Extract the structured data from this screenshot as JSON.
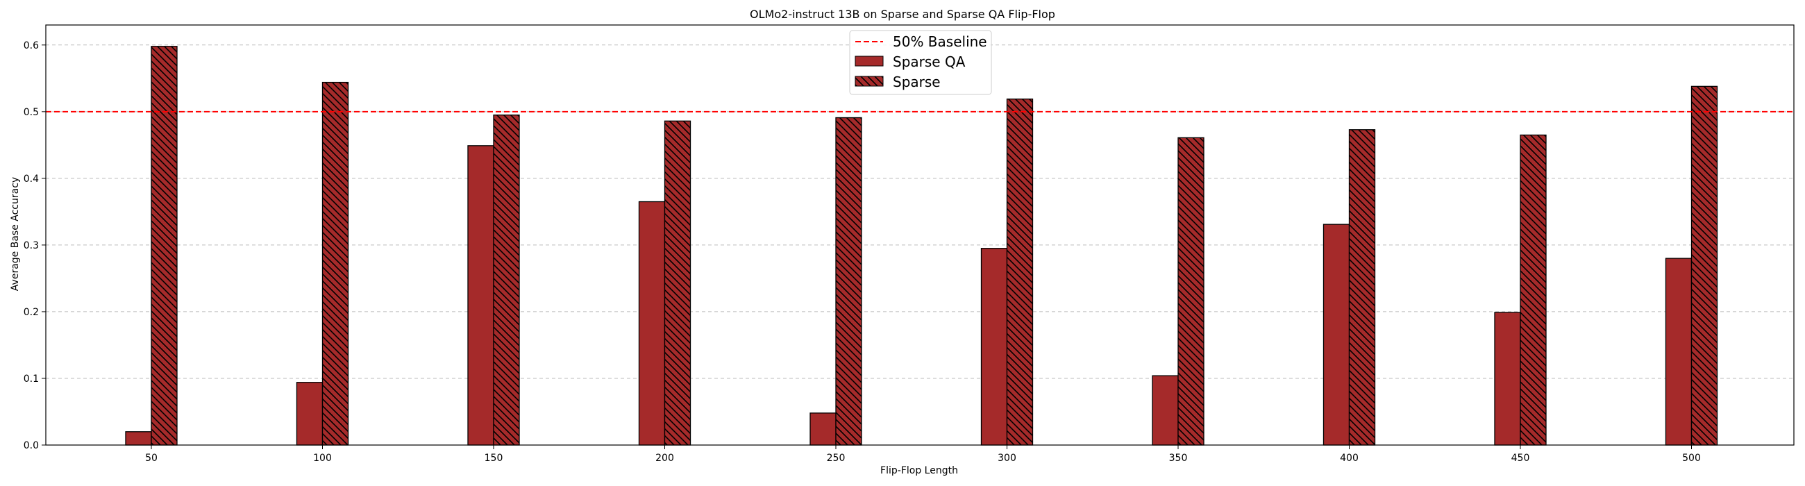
{
  "chart_data": {
    "type": "bar",
    "title": "OLMo2-instruct 13B on Sparse and Sparse QA Flip-Flop",
    "xlabel": "Flip-Flop Length",
    "ylabel": "Average Base Accuracy",
    "categories": [
      "50",
      "100",
      "150",
      "200",
      "250",
      "300",
      "350",
      "400",
      "450",
      "500"
    ],
    "series": [
      {
        "name": "Sparse QA",
        "values": [
          0.02,
          0.094,
          0.449,
          0.365,
          0.048,
          0.295,
          0.104,
          0.331,
          0.199,
          0.28
        ],
        "color": "#a52a2a",
        "hatch": false
      },
      {
        "name": "Sparse",
        "values": [
          0.598,
          0.544,
          0.495,
          0.486,
          0.491,
          0.519,
          0.461,
          0.473,
          0.465,
          0.538
        ],
        "color": "#a52a2a",
        "hatch": true
      }
    ],
    "baseline": {
      "name": "50% Baseline",
      "value": 0.5,
      "color": "#ff0000",
      "style": "dashed"
    },
    "ylim": [
      0,
      0.63
    ],
    "yticks": [
      "0.0",
      "0.1",
      "0.2",
      "0.3",
      "0.4",
      "0.5",
      "0.6"
    ],
    "grid": true,
    "legend_position": "top-center"
  }
}
